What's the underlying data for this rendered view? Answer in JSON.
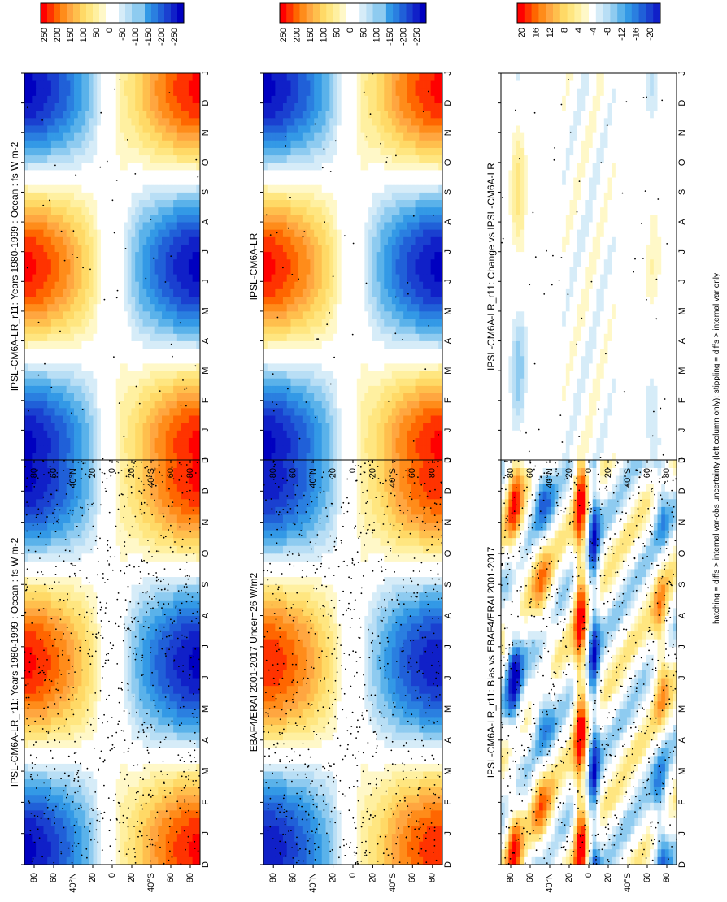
{
  "figure": {
    "footer": "hatching = diffs > internal var-obs uncertainty (left column only); stippling = diffs > internal var only"
  },
  "colors": {
    "warm": [
      "#ff0000",
      "#ff3300",
      "#ff6600",
      "#ff8c1a",
      "#ffa640",
      "#ffbf4d",
      "#ffd966",
      "#ffe680",
      "#fff0a0",
      "#fff8c8"
    ],
    "cool": [
      "#d6ecf8",
      "#b8def5",
      "#8ecbf0",
      "#5ab2ea",
      "#3399e6",
      "#2a7fe0",
      "#2060d8",
      "#1a40d0",
      "#1020c8",
      "#0000c0"
    ],
    "white": "#ffffff",
    "axis": "#000000"
  },
  "panel_axes": {
    "time_ticks": [
      "D",
      "J",
      "F",
      "M",
      "A",
      "M",
      "J",
      "J",
      "A",
      "S",
      "O",
      "N",
      "D",
      "J"
    ],
    "lat_ticks": [
      "80",
      "60",
      "40°N",
      "20",
      "0",
      "20",
      "40°S",
      "60",
      "80"
    ]
  },
  "chart_data": [
    {
      "type": "heatmap",
      "title": "IPSL-CM6A-LR_r11: Years 1980-1999 : Ocean : fs W m-2",
      "xlabel": "",
      "ylabel": "",
      "pattern": "clim",
      "stipple": "dense",
      "colorbar": {
        "labels": [
          "250",
          "200",
          "150",
          "100",
          "50",
          "0",
          "-50",
          "-100",
          "-150",
          "-200",
          "-250"
        ],
        "range": [
          -275,
          275
        ]
      }
    },
    {
      "type": "heatmap",
      "title": "IPSL-CM6A-LR_r11: Years 1980-1999 : Ocean : fs W m-2",
      "xlabel": "",
      "ylabel": "",
      "pattern": "clim",
      "stipple": "sparse",
      "colorbar": {
        "labels": [
          "250",
          "200",
          "150",
          "100",
          "50",
          "0",
          "-50",
          "-100",
          "-150",
          "-200",
          "-250"
        ],
        "range": [
          -275,
          275
        ]
      }
    },
    {
      "type": "heatmap",
      "title": "EBAF4/ERAI 2001-2017 Uncer=26 W/m2",
      "xlabel": "",
      "ylabel": "",
      "pattern": "clim",
      "stipple": "dense",
      "colorbar": {
        "labels": [
          "250",
          "200",
          "150",
          "100",
          "50",
          "0",
          "-50",
          "-100",
          "-150",
          "-200",
          "-250"
        ],
        "range": [
          -275,
          275
        ]
      }
    },
    {
      "type": "heatmap",
      "title": "IPSL-CM6A-LR",
      "xlabel": "",
      "ylabel": "",
      "pattern": "clim",
      "stipple": "sparse",
      "colorbar": {
        "labels": [
          "250",
          "200",
          "150",
          "100",
          "50",
          "0",
          "-50",
          "-100",
          "-150",
          "-200",
          "-250"
        ],
        "range": [
          -275,
          275
        ]
      }
    },
    {
      "type": "heatmap",
      "title": "IPSL-CM6A-LR_r11: Bias vs EBAF4/ERAI 2001-2017",
      "xlabel": "",
      "ylabel": "",
      "pattern": "bias",
      "stipple": "dense",
      "colorbar": {
        "labels": [
          "20",
          "16",
          "12",
          "8",
          "4",
          "-4",
          "-8",
          "-12",
          "-16",
          "-20"
        ],
        "range": [
          -22,
          22
        ]
      }
    },
    {
      "type": "heatmap",
      "title": "IPSL-CM6A-LR_r11: Change vs IPSL-CM6A-LR",
      "xlabel": "",
      "ylabel": "",
      "pattern": "change",
      "stipple": "sparse",
      "colorbar": {
        "labels": [
          "20",
          "16",
          "12",
          "8",
          "4",
          "-4",
          "-8",
          "-12",
          "-16",
          "-20"
        ],
        "range": [
          -22,
          22
        ]
      }
    }
  ]
}
